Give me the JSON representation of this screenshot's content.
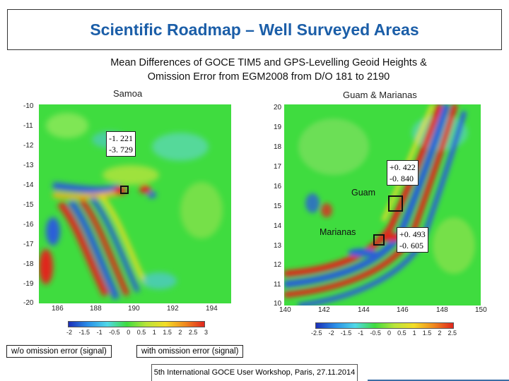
{
  "slide": {
    "title": "Scientific Roadmap – Well Surveyed Areas",
    "subtitle_line1": "Mean Differences of GOCE TIM5 and GPS-Levelling Geoid Heights &",
    "subtitle_line2": "Omission Error from EGM2008 from D/O 181 to 2190",
    "footer": "5th International GOCE User Workshop, Paris, 27.11.2014"
  },
  "left_panel": {
    "label": "Samoa",
    "y_ticks": [
      "-10",
      "-11",
      "-12",
      "-13",
      "-14",
      "-15",
      "-16",
      "-17",
      "-18",
      "-19",
      "-20"
    ],
    "x_ticks": [
      "186",
      "188",
      "190",
      "192",
      "194"
    ],
    "annotation_line1": "-1. 221",
    "annotation_line2": "-3. 729",
    "colorbar_ticks": [
      "-2",
      "-1.5",
      "-1",
      "-0.5",
      "0",
      "0.5",
      "1",
      "1.5",
      "2",
      "2.5",
      "3"
    ]
  },
  "right_panel": {
    "label": "Guam & Marianas",
    "y_ticks": [
      "20",
      "19",
      "18",
      "17",
      "16",
      "15",
      "14",
      "13",
      "12",
      "11",
      "10"
    ],
    "x_ticks": [
      "140",
      "142",
      "144",
      "146",
      "148",
      "150"
    ],
    "guam_label": "Guam",
    "marianas_label": "Marianas",
    "guam_annotation_line1": "+0. 422",
    "guam_annotation_line2": "-0. 840",
    "marianas_annotation_line1": "+0. 493",
    "marianas_annotation_line2": "-0. 605",
    "colorbar_ticks": [
      "-2.5",
      "-2",
      "-1.5",
      "-1",
      "-0.5",
      "0",
      "0.5",
      "1",
      "1.5",
      "2",
      "2.5"
    ]
  },
  "legend": {
    "without_label": "w/o omission error (signal)",
    "with_label": "with omission error (signal)"
  },
  "colors": {
    "title": "#1b5ea8",
    "field_base": "#3fdc3f",
    "positive": "#e0261e",
    "negative": "#2a5fd8"
  }
}
